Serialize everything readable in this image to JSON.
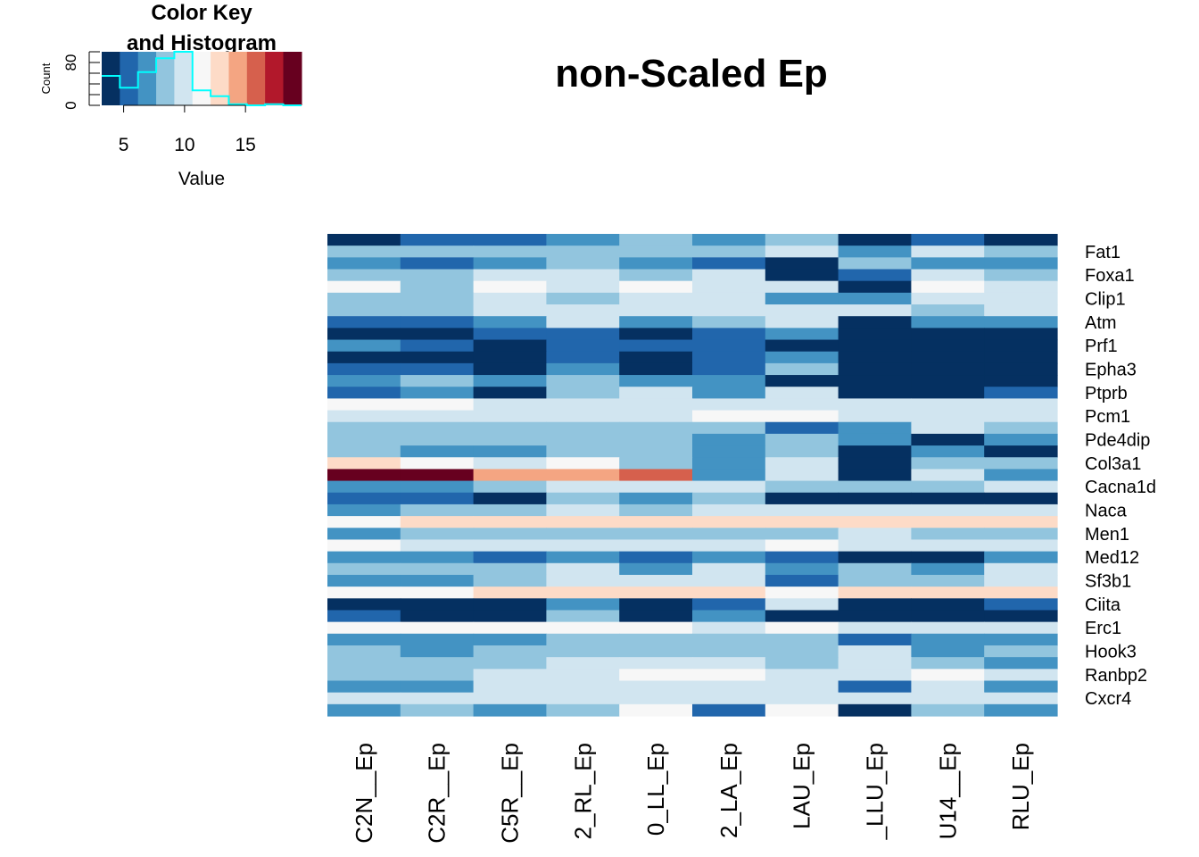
{
  "chart_data": {
    "type": "heatmap",
    "title": "non-Scaled Ep",
    "color_key": {
      "title_line1": "Color Key",
      "title_line2": "and Histogram",
      "xlabel": "Value",
      "ylabel": "Count",
      "x_ticks": [
        "5",
        "10",
        "15"
      ],
      "x_tick_values": [
        5,
        10,
        15
      ],
      "y_ticks": [
        "0",
        "80"
      ],
      "y_tick_values": [
        0,
        80
      ],
      "x_range": [
        3.2,
        19.6
      ],
      "y_range": [
        0,
        100
      ],
      "breaks": [
        3.2,
        4.69,
        6.18,
        7.67,
        9.16,
        10.65,
        12.14,
        13.63,
        15.12,
        16.61,
        18.1,
        19.6
      ],
      "histogram_counts": [
        55,
        33,
        62,
        88,
        100,
        28,
        17,
        2,
        0,
        2,
        0
      ],
      "histogram_color": "#00ffff",
      "palette": [
        "#053061",
        "#2166ac",
        "#4393c3",
        "#92c5de",
        "#d1e5f0",
        "#f7f7f7",
        "#fddbc7",
        "#f4a582",
        "#d6604d",
        "#b2182b",
        "#67001f"
      ]
    },
    "row_labels": [
      "Fat1",
      "Foxa1",
      "Clip1",
      "Atm",
      "Prf1",
      "Epha3",
      "Ptprb",
      "Pcm1",
      "Pde4dip",
      "Col3a1",
      "Cacna1d",
      "Naca",
      "Men1",
      "Med12",
      "Sf3b1",
      "Ciita",
      "Erc1",
      "Hook3",
      "Ranbp2",
      "Cxcr4"
    ],
    "row_label_positions": [
      1,
      3,
      5,
      7,
      9,
      11,
      13,
      15,
      17,
      19,
      21,
      23,
      25,
      27,
      29,
      31,
      33,
      35,
      37,
      39
    ],
    "col_labels": [
      "C2N__Ep",
      "C2R__Ep",
      "C5R__Ep",
      "2_RL_Ep",
      "0_LL_Ep",
      "2_LA_Ep",
      "LAU_Ep",
      "_LLU_Ep",
      "U14__Ep",
      "RLU_Ep"
    ],
    "n_rows": 40,
    "matrix_bins": [
      [
        0,
        1,
        1,
        2,
        3,
        2,
        3,
        0,
        1,
        0
      ],
      [
        3,
        3,
        3,
        3,
        3,
        3,
        4,
        2,
        4,
        3
      ],
      [
        2,
        1,
        2,
        3,
        2,
        1,
        0,
        3,
        2,
        2
      ],
      [
        3,
        3,
        4,
        4,
        3,
        4,
        0,
        1,
        4,
        3
      ],
      [
        5,
        3,
        5,
        4,
        5,
        4,
        4,
        0,
        5,
        4
      ],
      [
        3,
        3,
        4,
        3,
        4,
        4,
        2,
        2,
        4,
        4
      ],
      [
        3,
        3,
        4,
        4,
        4,
        4,
        4,
        4,
        3,
        4
      ],
      [
        1,
        1,
        2,
        4,
        2,
        3,
        4,
        0,
        2,
        2
      ],
      [
        0,
        0,
        1,
        1,
        0,
        1,
        2,
        0,
        0,
        0
      ],
      [
        2,
        1,
        0,
        1,
        1,
        1,
        0,
        0,
        0,
        0
      ],
      [
        0,
        0,
        0,
        1,
        0,
        1,
        2,
        0,
        0,
        0
      ],
      [
        1,
        1,
        0,
        2,
        0,
        1,
        3,
        0,
        0,
        0
      ],
      [
        2,
        3,
        2,
        3,
        2,
        2,
        0,
        0,
        0,
        0
      ],
      [
        1,
        2,
        0,
        3,
        4,
        2,
        4,
        0,
        0,
        1
      ],
      [
        5,
        5,
        4,
        4,
        4,
        4,
        4,
        4,
        4,
        4
      ],
      [
        4,
        4,
        4,
        4,
        4,
        5,
        5,
        4,
        4,
        4
      ],
      [
        3,
        3,
        3,
        3,
        3,
        3,
        1,
        2,
        4,
        3
      ],
      [
        3,
        3,
        3,
        3,
        3,
        2,
        3,
        2,
        0,
        2
      ],
      [
        3,
        2,
        2,
        3,
        3,
        2,
        3,
        0,
        2,
        0
      ],
      [
        6,
        5,
        4,
        5,
        3,
        2,
        4,
        0,
        3,
        3
      ],
      [
        10,
        10,
        7,
        7,
        8,
        2,
        4,
        0,
        4,
        2
      ],
      [
        2,
        2,
        3,
        4,
        4,
        4,
        3,
        3,
        3,
        4
      ],
      [
        1,
        1,
        0,
        3,
        2,
        3,
        0,
        0,
        0,
        0
      ],
      [
        2,
        3,
        3,
        4,
        3,
        4,
        4,
        4,
        4,
        4
      ],
      [
        5,
        6,
        6,
        6,
        6,
        6,
        6,
        6,
        6,
        6
      ],
      [
        2,
        3,
        3,
        3,
        3,
        3,
        3,
        4,
        3,
        3
      ],
      [
        5,
        4,
        4,
        4,
        4,
        4,
        5,
        4,
        4,
        4
      ],
      [
        2,
        2,
        1,
        2,
        1,
        2,
        1,
        0,
        0,
        2
      ],
      [
        3,
        3,
        3,
        4,
        2,
        4,
        2,
        3,
        2,
        4
      ],
      [
        2,
        2,
        3,
        4,
        4,
        4,
        1,
        3,
        3,
        4
      ],
      [
        5,
        5,
        6,
        6,
        6,
        6,
        5,
        6,
        6,
        6
      ],
      [
        0,
        0,
        0,
        2,
        0,
        1,
        4,
        0,
        0,
        1
      ],
      [
        1,
        0,
        0,
        3,
        0,
        2,
        0,
        0,
        0,
        0
      ],
      [
        5,
        5,
        5,
        5,
        5,
        4,
        5,
        4,
        4,
        4
      ],
      [
        2,
        2,
        2,
        3,
        3,
        3,
        3,
        1,
        2,
        2
      ],
      [
        3,
        2,
        3,
        3,
        3,
        3,
        3,
        4,
        2,
        3
      ],
      [
        3,
        3,
        3,
        4,
        4,
        4,
        3,
        4,
        3,
        2
      ],
      [
        3,
        3,
        4,
        4,
        5,
        5,
        4,
        4,
        5,
        4
      ],
      [
        2,
        2,
        4,
        4,
        4,
        4,
        4,
        1,
        4,
        2
      ],
      [
        4,
        4,
        4,
        4,
        4,
        4,
        4,
        4,
        4,
        4
      ]
    ],
    "matrix_bins_tail": [
      [
        2,
        3,
        2,
        3,
        5,
        1,
        5,
        0,
        3,
        2
      ]
    ]
  }
}
